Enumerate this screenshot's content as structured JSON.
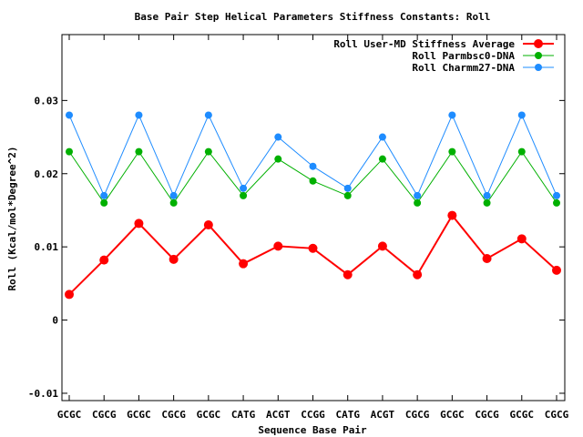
{
  "chart_data": {
    "type": "line",
    "title": "Base Pair Step Helical Parameters Stiffness Constants: Roll",
    "xlabel": "Sequence Base Pair",
    "ylabel": "Roll (Kcal/mol*Degree^2)",
    "categories": [
      "GCGC",
      "CGCG",
      "GCGC",
      "CGCG",
      "GCGC",
      "CATG",
      "ACGT",
      "CCGG",
      "CATG",
      "ACGT",
      "CGCG",
      "GCGC",
      "CGCG",
      "GCGC",
      "CGCG"
    ],
    "ylim": [
      -0.011,
      0.039
    ],
    "yticks": [
      {
        "value": -0.01,
        "label": "-0.01"
      },
      {
        "value": 0,
        "label": "0"
      },
      {
        "value": 0.01,
        "label": "0.01"
      },
      {
        "value": 0.02,
        "label": "0.02"
      },
      {
        "value": 0.03,
        "label": "0.03"
      }
    ],
    "grid": false,
    "legend_position": "top-right",
    "series": [
      {
        "name": "Roll User-MD Stiffness Average",
        "color": "#ff0000",
        "values": [
          0.0035,
          0.0082,
          0.0132,
          0.0083,
          0.013,
          0.0077,
          0.0101,
          0.0098,
          0.0062,
          0.0101,
          0.0062,
          0.0143,
          0.0084,
          0.0111,
          0.0068
        ]
      },
      {
        "name": "Roll Parmbsc0-DNA",
        "color": "#00b000",
        "values": [
          0.023,
          0.016,
          0.023,
          0.016,
          0.023,
          0.017,
          0.022,
          0.019,
          0.017,
          0.022,
          0.016,
          0.023,
          0.016,
          0.023,
          0.016
        ]
      },
      {
        "name": "Roll Charmm27-DNA",
        "color": "#1e8cff",
        "values": [
          0.028,
          0.017,
          0.028,
          0.017,
          0.028,
          0.018,
          0.025,
          0.021,
          0.018,
          0.025,
          0.017,
          0.028,
          0.017,
          0.028,
          0.017
        ]
      }
    ]
  }
}
